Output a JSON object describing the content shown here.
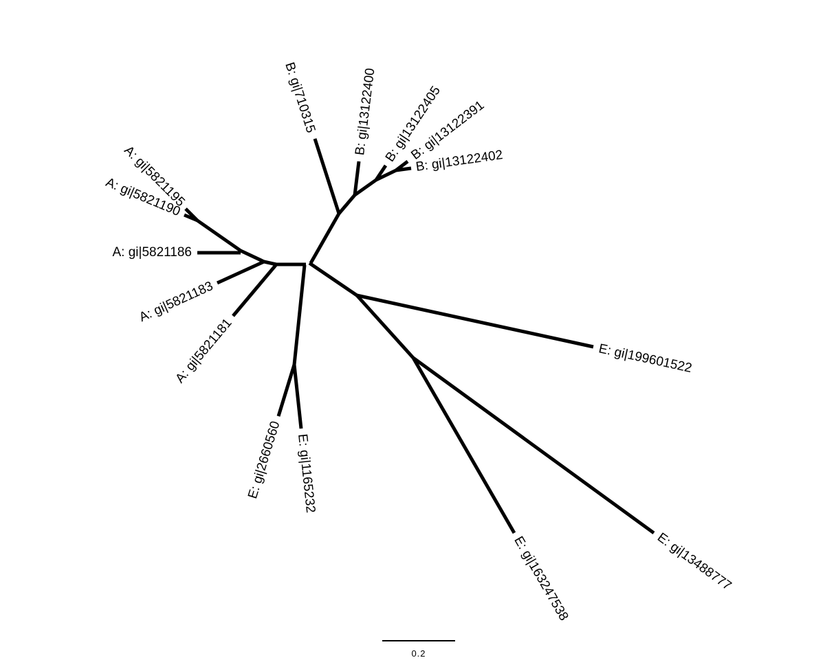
{
  "tree": {
    "leaves": [
      "B: gi|710315",
      "B: gi|13122400",
      "B: gi|13122405",
      "B: gi|13122391",
      "B: gi|13122402",
      "A: gi|5821195",
      "A: gi|5821190",
      "A: gi|5821186",
      "A: gi|5821183",
      "A: gi|5821181",
      "E: gi|2660560",
      "E: gi|1165232",
      "E: gi|199601522",
      "E: gi|163247538",
      "E: gi|13488777"
    ]
  },
  "scale_bar": {
    "label": "0.2"
  }
}
